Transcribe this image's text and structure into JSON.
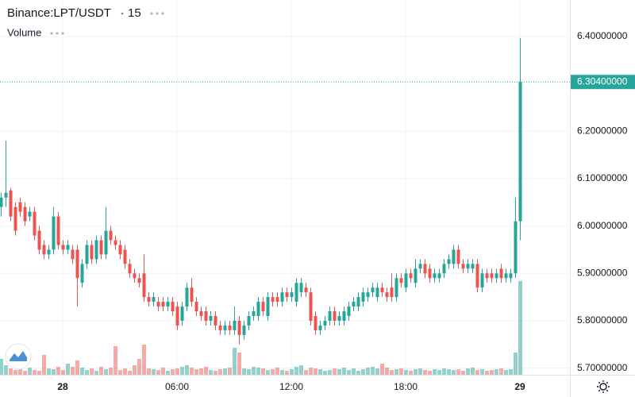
{
  "chart_data": {
    "type": "candlestick",
    "symbol": "Binance:LPT/USDT",
    "interval": "15",
    "volume_label": "Volume",
    "up_color": "#26a69a",
    "down_color": "#ef5350",
    "grid": true,
    "xlim": [
      -0.17,
      119.5
    ],
    "xticks": [
      {
        "value": 13,
        "label": "28"
      },
      {
        "value": 37,
        "label": "06:00"
      },
      {
        "value": 61,
        "label": "12:00"
      },
      {
        "value": 85,
        "label": "18:00"
      },
      {
        "value": 109,
        "label": "29"
      }
    ],
    "ylim": [
      5.686,
      6.477
    ],
    "yticks": [
      {
        "value": 5.7,
        "label": "5.70000000"
      },
      {
        "value": 5.8,
        "label": "5.80000000"
      },
      {
        "value": 5.9,
        "label": "5.90000000"
      },
      {
        "value": 6.0,
        "label": "6.00000000"
      },
      {
        "value": 6.1,
        "label": "6.10000000"
      },
      {
        "value": 6.2,
        "label": "6.20000000"
      },
      {
        "value": 6.4,
        "label": "6.40000000"
      }
    ],
    "last_price": {
      "value": 6.304,
      "label": "6.30400000"
    },
    "open": [
      6.04,
      6.06,
      6.075,
      6.04,
      6.05,
      6.04,
      6.02,
      6.03,
      5.99,
      5.96,
      5.94,
      5.95,
      6.02,
      5.96,
      5.95,
      5.95,
      5.95,
      5.88,
      5.92,
      5.96,
      5.93,
      5.97,
      5.94,
      5.99,
      5.97,
      5.96,
      5.95,
      5.92,
      5.9,
      5.89,
      5.9,
      5.85,
      5.84,
      5.84,
      5.84,
      5.83,
      5.84,
      5.83,
      5.8,
      5.83,
      5.87,
      5.84,
      5.82,
      5.82,
      5.8,
      5.81,
      5.79,
      5.78,
      5.79,
      5.78,
      5.8,
      5.77,
      5.79,
      5.81,
      5.81,
      5.84,
      5.81,
      5.85,
      5.85,
      5.84,
      5.86,
      5.85,
      5.84,
      5.86,
      5.87,
      5.86,
      5.81,
      5.78,
      5.79,
      5.8,
      5.82,
      5.8,
      5.8,
      5.81,
      5.83,
      5.83,
      5.84,
      5.85,
      5.86,
      5.85,
      5.87,
      5.86,
      5.87,
      5.85,
      5.89,
      5.87,
      5.9,
      5.88,
      5.91,
      5.92,
      5.91,
      5.89,
      5.89,
      5.9,
      5.92,
      5.92,
      5.95,
      5.92,
      5.91,
      5.91,
      5.92,
      5.87,
      5.9,
      5.9,
      5.89,
      5.91,
      5.89,
      5.89,
      5.9,
      6.01
    ],
    "high": [
      6.07,
      6.18,
      6.08,
      6.05,
      6.06,
      6.05,
      6.04,
      6.04,
      6.0,
      5.97,
      5.96,
      6.04,
      6.03,
      5.97,
      5.97,
      5.96,
      5.96,
      5.93,
      5.97,
      5.97,
      5.98,
      5.98,
      6.04,
      6.0,
      5.98,
      5.97,
      5.96,
      5.93,
      5.91,
      5.9,
      5.94,
      5.86,
      5.86,
      5.85,
      5.85,
      5.85,
      5.85,
      5.84,
      5.84,
      5.88,
      5.89,
      5.85,
      5.83,
      5.83,
      5.82,
      5.82,
      5.8,
      5.8,
      5.8,
      5.83,
      5.81,
      5.8,
      5.82,
      5.83,
      5.85,
      5.85,
      5.86,
      5.86,
      5.86,
      5.87,
      5.87,
      5.87,
      5.89,
      5.89,
      5.88,
      5.87,
      5.82,
      5.8,
      5.81,
      5.83,
      5.83,
      5.82,
      5.83,
      5.84,
      5.85,
      5.86,
      5.87,
      5.87,
      5.88,
      5.88,
      5.88,
      5.87,
      5.9,
      5.9,
      5.9,
      5.91,
      5.91,
      5.93,
      5.93,
      5.93,
      5.92,
      5.91,
      5.91,
      5.93,
      5.94,
      5.96,
      5.96,
      5.93,
      5.93,
      5.93,
      5.93,
      5.91,
      5.91,
      5.91,
      5.91,
      5.92,
      5.91,
      5.91,
      6.06,
      6.397
    ],
    "low": [
      6.02,
      6.04,
      6.01,
      5.98,
      6.02,
      6.0,
      6.01,
      5.97,
      5.94,
      5.93,
      5.93,
      5.94,
      5.95,
      5.94,
      5.94,
      5.92,
      5.83,
      5.87,
      5.91,
      5.92,
      5.92,
      5.93,
      5.93,
      5.96,
      5.95,
      5.93,
      5.91,
      5.89,
      5.88,
      5.87,
      5.84,
      5.83,
      5.83,
      5.82,
      5.82,
      5.82,
      5.81,
      5.78,
      5.79,
      5.82,
      5.83,
      5.81,
      5.8,
      5.79,
      5.79,
      5.78,
      5.77,
      5.77,
      5.77,
      5.77,
      5.75,
      5.76,
      5.78,
      5.8,
      5.8,
      5.81,
      5.8,
      5.83,
      5.83,
      5.83,
      5.84,
      5.84,
      5.83,
      5.85,
      5.85,
      5.79,
      5.77,
      5.77,
      5.78,
      5.79,
      5.79,
      5.79,
      5.79,
      5.8,
      5.82,
      5.82,
      5.83,
      5.84,
      5.85,
      5.84,
      5.85,
      5.84,
      5.84,
      5.84,
      5.87,
      5.86,
      5.88,
      5.87,
      5.9,
      5.89,
      5.88,
      5.88,
      5.88,
      5.89,
      5.91,
      5.91,
      5.91,
      5.9,
      5.9,
      5.9,
      5.86,
      5.86,
      5.88,
      5.88,
      5.88,
      5.88,
      5.88,
      5.88,
      5.89,
      5.97
    ],
    "close": [
      6.06,
      6.07,
      6.02,
      5.99,
      6.03,
      6.01,
      6.03,
      5.98,
      5.95,
      5.94,
      5.95,
      6.02,
      5.96,
      5.95,
      5.96,
      5.93,
      5.89,
      5.92,
      5.96,
      5.93,
      5.97,
      5.94,
      5.99,
      5.97,
      5.96,
      5.94,
      5.92,
      5.9,
      5.89,
      5.88,
      5.85,
      5.84,
      5.85,
      5.83,
      5.83,
      5.84,
      5.82,
      5.79,
      5.83,
      5.87,
      5.84,
      5.82,
      5.81,
      5.8,
      5.81,
      5.79,
      5.78,
      5.79,
      5.78,
      5.8,
      5.77,
      5.79,
      5.81,
      5.82,
      5.84,
      5.82,
      5.85,
      5.84,
      5.84,
      5.86,
      5.85,
      5.86,
      5.88,
      5.88,
      5.86,
      5.8,
      5.78,
      5.79,
      5.8,
      5.82,
      5.8,
      5.81,
      5.82,
      5.83,
      5.84,
      5.85,
      5.86,
      5.86,
      5.87,
      5.87,
      5.86,
      5.85,
      5.85,
      5.89,
      5.88,
      5.9,
      5.89,
      5.91,
      5.92,
      5.9,
      5.89,
      5.9,
      5.9,
      5.92,
      5.93,
      5.95,
      5.92,
      5.91,
      5.92,
      5.92,
      5.87,
      5.9,
      5.89,
      5.89,
      5.9,
      5.89,
      5.9,
      5.9,
      6.01,
      6.304
    ],
    "volume": [
      20,
      12,
      8,
      6,
      7,
      5,
      9,
      6,
      5,
      25,
      8,
      7,
      10,
      6,
      14,
      10,
      18,
      9,
      6,
      8,
      5,
      10,
      7,
      9,
      36,
      6,
      8,
      5,
      12,
      20,
      38,
      8,
      7,
      6,
      9,
      5,
      7,
      8,
      10,
      12,
      9,
      7,
      8,
      10,
      6,
      5,
      7,
      8,
      9,
      34,
      28,
      8,
      7,
      10,
      9,
      8,
      6,
      7,
      9,
      6,
      5,
      7,
      10,
      12,
      6,
      9,
      8,
      7,
      5,
      6,
      8,
      7,
      9,
      6,
      8,
      5,
      7,
      9,
      10,
      8,
      14,
      9,
      6,
      7,
      8,
      6,
      5,
      7,
      8,
      6,
      5,
      7,
      6,
      8,
      7,
      6,
      7,
      5,
      8,
      9,
      6,
      7,
      5,
      6,
      7,
      8,
      6,
      7,
      28,
      118
    ]
  }
}
